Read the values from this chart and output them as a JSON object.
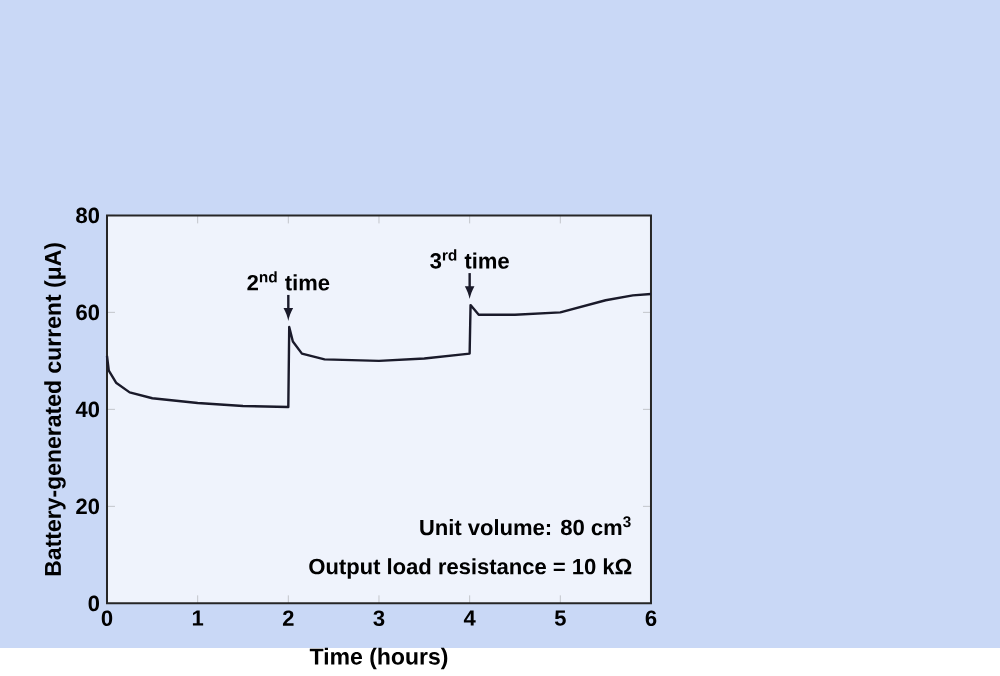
{
  "chart_data": {
    "type": "line",
    "xlabel": "Time (hours)",
    "ylabel": "Battery-generated current (μA)",
    "x": [
      0,
      0.02,
      0.1,
      0.25,
      0.5,
      1,
      1.5,
      2,
      2.01,
      2.05,
      2.15,
      2.4,
      3,
      3.5,
      4,
      4.01,
      4.1,
      4.5,
      5,
      5.5,
      5.8,
      6
    ],
    "values": [
      51,
      48,
      45.5,
      43.5,
      42.3,
      41.3,
      40.7,
      40.5,
      57,
      54,
      51.5,
      50.3,
      50,
      50.5,
      51.5,
      61.5,
      59.5,
      59.5,
      60,
      62.5,
      63.5,
      63.8
    ],
    "color": "#1a1a2a",
    "xlim": [
      0,
      6
    ],
    "ylim": [
      0,
      80
    ],
    "xticks": [
      0,
      1,
      2,
      3,
      4,
      5,
      6
    ],
    "yticks": [
      0,
      20,
      40,
      60,
      80
    ],
    "annotations": [
      {
        "text": "2$^{nd}$ time",
        "x": 2,
        "y": 57
      },
      {
        "text": "3$^{rd}$ time",
        "x": 4,
        "y": 61.5
      },
      "Unit volume: 80 cm$^{3}$",
      "Output load resistance = 10 kΩ"
    ]
  }
}
